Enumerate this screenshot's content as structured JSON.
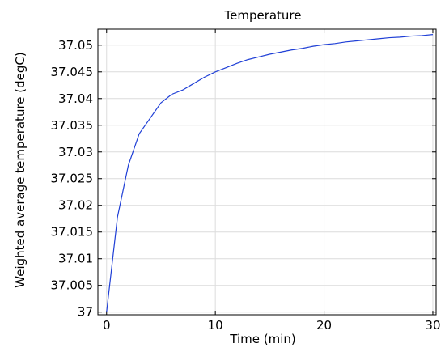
{
  "chart_data": {
    "type": "line",
    "title": "Temperature",
    "xlabel": "Time (min)",
    "ylabel": "Weighted average temperature (degC)",
    "xlim": [
      -0.8,
      30.3
    ],
    "ylim": [
      36.9995,
      37.053
    ],
    "grid": true,
    "x_ticks": [
      0,
      10,
      20,
      30
    ],
    "x_tick_labels": [
      "0",
      "10",
      "20",
      "30"
    ],
    "y_ticks": [
      37,
      37.005,
      37.01,
      37.015,
      37.02,
      37.025,
      37.03,
      37.035,
      37.04,
      37.045,
      37.05
    ],
    "y_tick_labels": [
      "37",
      "37.005",
      "37.01",
      "37.015",
      "37.02",
      "37.025",
      "37.03",
      "37.035",
      "37.04",
      "37.045",
      "37.05"
    ],
    "series": [
      {
        "color": "#1f3fd6",
        "x": [
          0,
          1,
          2,
          3,
          4,
          5,
          6,
          7,
          8,
          9,
          10,
          11,
          12,
          13,
          14,
          15,
          16,
          17,
          18,
          19,
          20,
          21,
          22,
          23,
          24,
          25,
          26,
          27,
          28,
          29,
          30
        ],
        "y": [
          37.0,
          37.0178,
          37.0275,
          37.0334,
          37.0363,
          37.0392,
          37.0408,
          37.0416,
          37.0428,
          37.044,
          37.045,
          37.0458,
          37.0466,
          37.0473,
          37.0478,
          37.0483,
          37.0487,
          37.0491,
          37.0494,
          37.0498,
          37.0501,
          37.0503,
          37.0506,
          37.0508,
          37.051,
          37.0512,
          37.0514,
          37.0515,
          37.0517,
          37.0518,
          37.052
        ]
      }
    ]
  }
}
